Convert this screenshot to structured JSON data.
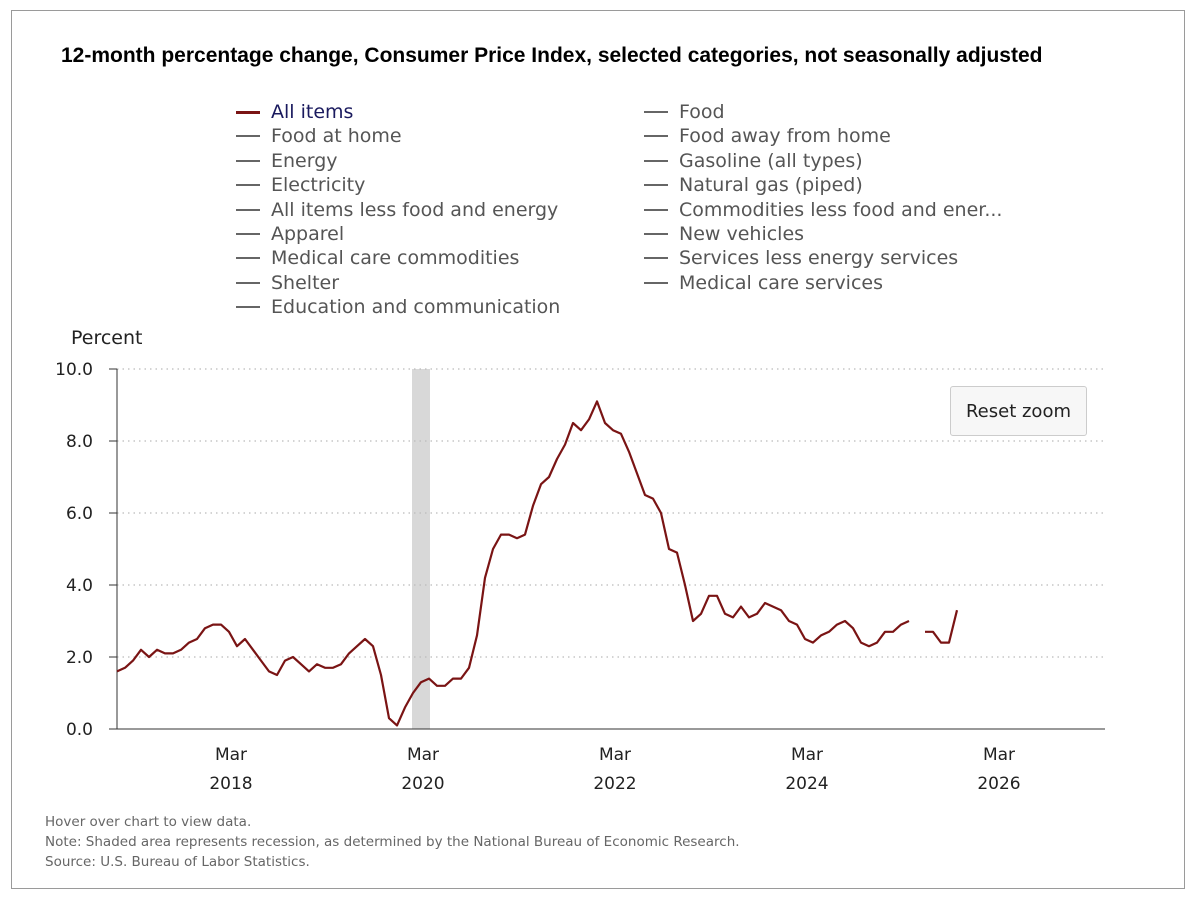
{
  "title": "12-month percentage change, Consumer Price Index, selected categories, not seasonally adjusted",
  "legend_left": [
    "All items",
    "Food at home",
    "Energy",
    "Electricity",
    "All items less food and energy",
    "Apparel",
    "Medical care commodities",
    "Shelter",
    "Education and communication"
  ],
  "legend_right": [
    "Food",
    "Food away from home",
    "Gasoline (all types)",
    "Natural gas (piped)",
    "Commodities less food and ener...",
    "New vehicles",
    "Services less energy services",
    "Medical care services"
  ],
  "reset_zoom_label": "Reset zoom",
  "footer": {
    "hover": "Hover over chart to view data.",
    "note": "Note: Shaded area represents recession, as determined by the National Bureau of Economic Research.",
    "source": "Source: U.S. Bureau of Labor Statistics."
  },
  "colors": {
    "series": "#7a1414",
    "recession": "#d8d8d8",
    "grid": "#bbbbbb"
  },
  "chart_data": {
    "type": "line",
    "title": "12-month percentage change, Consumer Price Index, selected categories, not seasonally adjusted",
    "ylabel": "Percent",
    "xlabel": "",
    "ylim": [
      0,
      10
    ],
    "yticks": [
      "0.0",
      "2.0",
      "4.0",
      "6.0",
      "8.0",
      "10.0"
    ],
    "xticks": [
      {
        "month": "Mar",
        "year": "2018",
        "date": "2018-03"
      },
      {
        "month": "Mar",
        "year": "2020",
        "date": "2020-03"
      },
      {
        "month": "Mar",
        "year": "2022",
        "date": "2022-03"
      },
      {
        "month": "Mar",
        "year": "2024",
        "date": "2024-03"
      },
      {
        "month": "Mar",
        "year": "2026",
        "date": "2026-03"
      }
    ],
    "x_range": [
      "2017-01",
      "2026-03"
    ],
    "recession": [
      "2020-02",
      "2020-04"
    ],
    "grid": "horizontal dotted",
    "series": [
      {
        "name": "All items",
        "points": [
          [
            "2017-01",
            1.6
          ],
          [
            "2017-02",
            1.7
          ],
          [
            "2017-03",
            1.9
          ],
          [
            "2017-04",
            2.2
          ],
          [
            "2017-05",
            2.0
          ],
          [
            "2017-06",
            2.2
          ],
          [
            "2017-07",
            2.1
          ],
          [
            "2017-08",
            2.1
          ],
          [
            "2017-09",
            2.2
          ],
          [
            "2017-10",
            2.4
          ],
          [
            "2017-11",
            2.5
          ],
          [
            "2017-12",
            2.8
          ],
          [
            "2018-01",
            2.9
          ],
          [
            "2018-02",
            2.9
          ],
          [
            "2018-03",
            2.7
          ],
          [
            "2018-04",
            2.3
          ],
          [
            "2018-05",
            2.5
          ],
          [
            "2018-06",
            2.2
          ],
          [
            "2018-07",
            1.9
          ],
          [
            "2018-08",
            1.6
          ],
          [
            "2018-09",
            1.5
          ],
          [
            "2018-10",
            1.9
          ],
          [
            "2018-11",
            2.0
          ],
          [
            "2018-12",
            1.8
          ],
          [
            "2019-01",
            1.6
          ],
          [
            "2019-02",
            1.8
          ],
          [
            "2019-03",
            1.7
          ],
          [
            "2019-04",
            1.7
          ],
          [
            "2019-05",
            1.8
          ],
          [
            "2019-06",
            2.1
          ],
          [
            "2019-07",
            2.3
          ],
          [
            "2019-08",
            2.5
          ],
          [
            "2019-09",
            2.3
          ],
          [
            "2019-10",
            1.5
          ],
          [
            "2019-11",
            0.3
          ],
          [
            "2019-12",
            0.1
          ],
          [
            "2020-01",
            0.6
          ],
          [
            "2020-02",
            1.0
          ],
          [
            "2020-03",
            1.3
          ],
          [
            "2020-04",
            1.4
          ],
          [
            "2020-05",
            1.2
          ],
          [
            "2020-06",
            1.2
          ],
          [
            "2020-07",
            1.4
          ],
          [
            "2020-08",
            1.4
          ],
          [
            "2020-09",
            1.7
          ],
          [
            "2020-10",
            2.6
          ],
          [
            "2020-11",
            4.2
          ],
          [
            "2020-12",
            5.0
          ],
          [
            "2021-01",
            5.4
          ],
          [
            "2021-02",
            5.4
          ],
          [
            "2021-03",
            5.3
          ],
          [
            "2021-04",
            5.4
          ],
          [
            "2021-05",
            6.2
          ],
          [
            "2021-06",
            6.8
          ],
          [
            "2021-07",
            7.0
          ],
          [
            "2021-08",
            7.5
          ],
          [
            "2021-09",
            7.9
          ],
          [
            "2021-10",
            8.5
          ],
          [
            "2021-11",
            8.3
          ],
          [
            "2021-12",
            8.6
          ],
          [
            "2022-01",
            9.1
          ],
          [
            "2022-02",
            8.5
          ],
          [
            "2022-03",
            8.3
          ],
          [
            "2022-04",
            8.2
          ],
          [
            "2022-05",
            7.7
          ],
          [
            "2022-06",
            7.1
          ],
          [
            "2022-07",
            6.5
          ],
          [
            "2022-08",
            6.4
          ],
          [
            "2022-09",
            6.0
          ],
          [
            "2022-10",
            5.0
          ],
          [
            "2022-11",
            4.9
          ],
          [
            "2022-12",
            4.0
          ],
          [
            "2023-01",
            3.0
          ],
          [
            "2023-02",
            3.2
          ],
          [
            "2023-03",
            3.7
          ],
          [
            "2023-04",
            3.7
          ],
          [
            "2023-05",
            3.2
          ],
          [
            "2023-06",
            3.1
          ],
          [
            "2023-07",
            3.4
          ],
          [
            "2023-08",
            3.1
          ],
          [
            "2023-09",
            3.2
          ],
          [
            "2023-10",
            3.5
          ],
          [
            "2023-11",
            3.4
          ],
          [
            "2023-12",
            3.3
          ],
          [
            "2024-01",
            3.0
          ],
          [
            "2024-02",
            2.9
          ],
          [
            "2024-03",
            2.5
          ],
          [
            "2024-04",
            2.4
          ],
          [
            "2024-05",
            2.6
          ],
          [
            "2024-06",
            2.7
          ],
          [
            "2024-07",
            2.9
          ],
          [
            "2024-08",
            3.0
          ],
          [
            "2024-09",
            2.8
          ],
          [
            "2024-10",
            2.4
          ],
          [
            "2024-11",
            2.3
          ],
          [
            "2024-12",
            2.4
          ],
          [
            "2025-01",
            2.7
          ],
          [
            "2025-02",
            2.7
          ],
          [
            "2025-03",
            2.9
          ],
          [
            "2025-04",
            3.0
          ],
          null,
          [
            "2025-06",
            2.7
          ],
          [
            "2025-07",
            2.7
          ],
          [
            "2025-08",
            2.4
          ],
          [
            "2025-09",
            2.4
          ],
          [
            "2025-10",
            3.3
          ]
        ]
      }
    ]
  }
}
